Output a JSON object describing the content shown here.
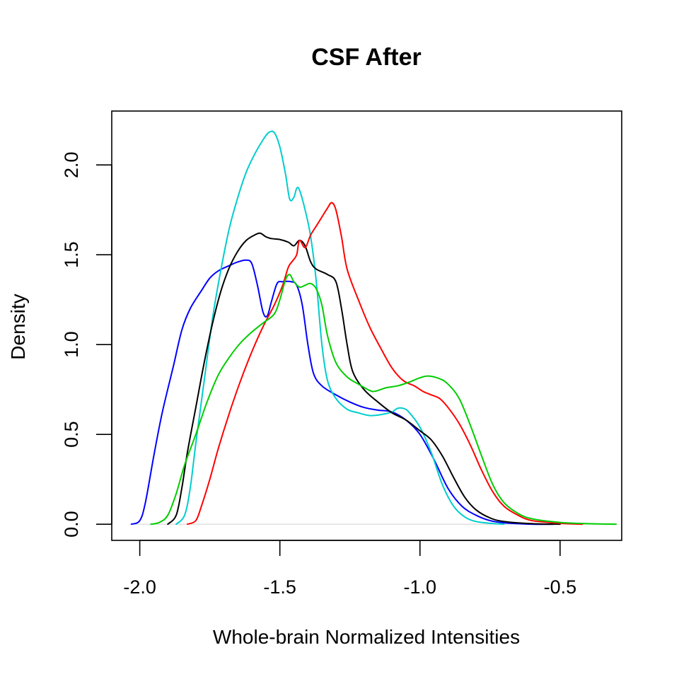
{
  "chart_data": {
    "type": "line",
    "title": "CSF After",
    "xlabel": "Whole-brain Normalized Intensities",
    "ylabel": "Density",
    "xlim": [
      -2.1,
      -0.28
    ],
    "ylim": [
      -0.09,
      2.3
    ],
    "x_ticks": [
      -2.0,
      -1.5,
      -1.0,
      -0.5
    ],
    "x_tick_labels": [
      "-2.0",
      "-1.5",
      "-1.0",
      "-0.5"
    ],
    "y_ticks": [
      0.0,
      0.5,
      1.0,
      1.5,
      2.0
    ],
    "y_tick_labels": [
      "0.0",
      "0.5",
      "1.0",
      "1.5",
      "2.0"
    ],
    "zero_line": true,
    "grid": false,
    "legend": "none",
    "series": [
      {
        "color": "#0000ff",
        "points": [
          [
            -2.03,
            0.0
          ],
          [
            -2.0,
            0.02
          ],
          [
            -1.98,
            0.12
          ],
          [
            -1.95,
            0.38
          ],
          [
            -1.92,
            0.62
          ],
          [
            -1.88,
            0.88
          ],
          [
            -1.85,
            1.08
          ],
          [
            -1.82,
            1.2
          ],
          [
            -1.78,
            1.3
          ],
          [
            -1.75,
            1.37
          ],
          [
            -1.72,
            1.41
          ],
          [
            -1.68,
            1.44
          ],
          [
            -1.65,
            1.46
          ],
          [
            -1.62,
            1.47
          ],
          [
            -1.6,
            1.45
          ],
          [
            -1.58,
            1.33
          ],
          [
            -1.56,
            1.18
          ],
          [
            -1.545,
            1.16
          ],
          [
            -1.53,
            1.24
          ],
          [
            -1.51,
            1.34
          ],
          [
            -1.49,
            1.35
          ],
          [
            -1.46,
            1.35
          ],
          [
            -1.44,
            1.33
          ],
          [
            -1.42,
            1.22
          ],
          [
            -1.4,
            1.0
          ],
          [
            -1.38,
            0.84
          ],
          [
            -1.35,
            0.77
          ],
          [
            -1.3,
            0.72
          ],
          [
            -1.25,
            0.68
          ],
          [
            -1.2,
            0.65
          ],
          [
            -1.15,
            0.635
          ],
          [
            -1.1,
            0.625
          ],
          [
            -1.05,
            0.58
          ],
          [
            -1.0,
            0.5
          ],
          [
            -0.95,
            0.36
          ],
          [
            -0.9,
            0.2
          ],
          [
            -0.85,
            0.1
          ],
          [
            -0.8,
            0.05
          ],
          [
            -0.75,
            0.02
          ],
          [
            -0.7,
            0.008
          ],
          [
            -0.6,
            0.0
          ],
          [
            -0.52,
            0.0
          ]
        ]
      },
      {
        "color": "#00cdcd",
        "points": [
          [
            -1.87,
            0.0
          ],
          [
            -1.84,
            0.05
          ],
          [
            -1.82,
            0.2
          ],
          [
            -1.8,
            0.45
          ],
          [
            -1.77,
            0.8
          ],
          [
            -1.74,
            1.15
          ],
          [
            -1.71,
            1.42
          ],
          [
            -1.68,
            1.65
          ],
          [
            -1.65,
            1.82
          ],
          [
            -1.62,
            1.96
          ],
          [
            -1.59,
            2.06
          ],
          [
            -1.56,
            2.14
          ],
          [
            -1.54,
            2.18
          ],
          [
            -1.52,
            2.18
          ],
          [
            -1.5,
            2.1
          ],
          [
            -1.48,
            1.95
          ],
          [
            -1.465,
            1.81
          ],
          [
            -1.45,
            1.82
          ],
          [
            -1.44,
            1.87
          ],
          [
            -1.43,
            1.86
          ],
          [
            -1.41,
            1.75
          ],
          [
            -1.39,
            1.6
          ],
          [
            -1.37,
            1.35
          ],
          [
            -1.35,
            1.0
          ],
          [
            -1.33,
            0.8
          ],
          [
            -1.3,
            0.7
          ],
          [
            -1.26,
            0.64
          ],
          [
            -1.22,
            0.62
          ],
          [
            -1.18,
            0.605
          ],
          [
            -1.14,
            0.61
          ],
          [
            -1.1,
            0.625
          ],
          [
            -1.08,
            0.645
          ],
          [
            -1.06,
            0.645
          ],
          [
            -1.04,
            0.625
          ],
          [
            -1.0,
            0.54
          ],
          [
            -0.96,
            0.4
          ],
          [
            -0.92,
            0.22
          ],
          [
            -0.88,
            0.1
          ],
          [
            -0.84,
            0.04
          ],
          [
            -0.8,
            0.015
          ],
          [
            -0.75,
            0.005
          ],
          [
            -0.7,
            0.0
          ]
        ]
      },
      {
        "color": "#000000",
        "points": [
          [
            -1.9,
            0.0
          ],
          [
            -1.87,
            0.05
          ],
          [
            -1.85,
            0.2
          ],
          [
            -1.83,
            0.4
          ],
          [
            -1.8,
            0.65
          ],
          [
            -1.77,
            0.9
          ],
          [
            -1.74,
            1.12
          ],
          [
            -1.71,
            1.3
          ],
          [
            -1.68,
            1.43
          ],
          [
            -1.65,
            1.52
          ],
          [
            -1.62,
            1.58
          ],
          [
            -1.59,
            1.61
          ],
          [
            -1.57,
            1.62
          ],
          [
            -1.55,
            1.6
          ],
          [
            -1.53,
            1.59
          ],
          [
            -1.5,
            1.585
          ],
          [
            -1.47,
            1.57
          ],
          [
            -1.45,
            1.55
          ],
          [
            -1.43,
            1.58
          ],
          [
            -1.41,
            1.55
          ],
          [
            -1.39,
            1.46
          ],
          [
            -1.37,
            1.42
          ],
          [
            -1.33,
            1.39
          ],
          [
            -1.3,
            1.35
          ],
          [
            -1.28,
            1.2
          ],
          [
            -1.26,
            1.0
          ],
          [
            -1.24,
            0.85
          ],
          [
            -1.2,
            0.75
          ],
          [
            -1.15,
            0.68
          ],
          [
            -1.1,
            0.62
          ],
          [
            -1.05,
            0.58
          ],
          [
            -1.0,
            0.52
          ],
          [
            -0.96,
            0.47
          ],
          [
            -0.92,
            0.38
          ],
          [
            -0.88,
            0.26
          ],
          [
            -0.84,
            0.15
          ],
          [
            -0.8,
            0.08
          ],
          [
            -0.75,
            0.035
          ],
          [
            -0.7,
            0.015
          ],
          [
            -0.6,
            0.003
          ],
          [
            -0.5,
            0.0
          ]
        ]
      },
      {
        "color": "#ff0000",
        "points": [
          [
            -1.83,
            0.0
          ],
          [
            -1.8,
            0.02
          ],
          [
            -1.78,
            0.1
          ],
          [
            -1.75,
            0.25
          ],
          [
            -1.72,
            0.42
          ],
          [
            -1.68,
            0.62
          ],
          [
            -1.64,
            0.8
          ],
          [
            -1.6,
            0.96
          ],
          [
            -1.56,
            1.1
          ],
          [
            -1.52,
            1.22
          ],
          [
            -1.49,
            1.33
          ],
          [
            -1.47,
            1.43
          ],
          [
            -1.455,
            1.465
          ],
          [
            -1.44,
            1.5
          ],
          [
            -1.43,
            1.58
          ],
          [
            -1.41,
            1.54
          ],
          [
            -1.39,
            1.61
          ],
          [
            -1.37,
            1.66
          ],
          [
            -1.35,
            1.71
          ],
          [
            -1.33,
            1.76
          ],
          [
            -1.315,
            1.79
          ],
          [
            -1.3,
            1.75
          ],
          [
            -1.28,
            1.6
          ],
          [
            -1.26,
            1.42
          ],
          [
            -1.22,
            1.25
          ],
          [
            -1.18,
            1.1
          ],
          [
            -1.14,
            0.98
          ],
          [
            -1.1,
            0.87
          ],
          [
            -1.06,
            0.8
          ],
          [
            -1.02,
            0.77
          ],
          [
            -0.99,
            0.74
          ],
          [
            -0.96,
            0.72
          ],
          [
            -0.93,
            0.7
          ],
          [
            -0.9,
            0.65
          ],
          [
            -0.86,
            0.56
          ],
          [
            -0.82,
            0.44
          ],
          [
            -0.78,
            0.3
          ],
          [
            -0.74,
            0.18
          ],
          [
            -0.7,
            0.1
          ],
          [
            -0.65,
            0.05
          ],
          [
            -0.6,
            0.02
          ],
          [
            -0.5,
            0.005
          ],
          [
            -0.42,
            0.0
          ]
        ]
      },
      {
        "color": "#00cd00",
        "points": [
          [
            -1.96,
            0.0
          ],
          [
            -1.93,
            0.01
          ],
          [
            -1.9,
            0.05
          ],
          [
            -1.87,
            0.17
          ],
          [
            -1.84,
            0.33
          ],
          [
            -1.8,
            0.5
          ],
          [
            -1.76,
            0.68
          ],
          [
            -1.72,
            0.83
          ],
          [
            -1.68,
            0.93
          ],
          [
            -1.64,
            1.01
          ],
          [
            -1.6,
            1.07
          ],
          [
            -1.56,
            1.12
          ],
          [
            -1.52,
            1.17
          ],
          [
            -1.5,
            1.25
          ],
          [
            -1.48,
            1.36
          ],
          [
            -1.465,
            1.39
          ],
          [
            -1.45,
            1.35
          ],
          [
            -1.43,
            1.32
          ],
          [
            -1.41,
            1.33
          ],
          [
            -1.39,
            1.34
          ],
          [
            -1.37,
            1.31
          ],
          [
            -1.35,
            1.22
          ],
          [
            -1.33,
            1.05
          ],
          [
            -1.3,
            0.9
          ],
          [
            -1.26,
            0.82
          ],
          [
            -1.22,
            0.78
          ],
          [
            -1.18,
            0.745
          ],
          [
            -1.16,
            0.74
          ],
          [
            -1.12,
            0.76
          ],
          [
            -1.08,
            0.77
          ],
          [
            -1.04,
            0.79
          ],
          [
            -1.0,
            0.815
          ],
          [
            -0.97,
            0.825
          ],
          [
            -0.93,
            0.81
          ],
          [
            -0.9,
            0.78
          ],
          [
            -0.86,
            0.7
          ],
          [
            -0.82,
            0.55
          ],
          [
            -0.78,
            0.38
          ],
          [
            -0.74,
            0.22
          ],
          [
            -0.7,
            0.12
          ],
          [
            -0.65,
            0.06
          ],
          [
            -0.6,
            0.03
          ],
          [
            -0.5,
            0.01
          ],
          [
            -0.4,
            0.003
          ],
          [
            -0.3,
            0.0
          ]
        ]
      }
    ]
  }
}
